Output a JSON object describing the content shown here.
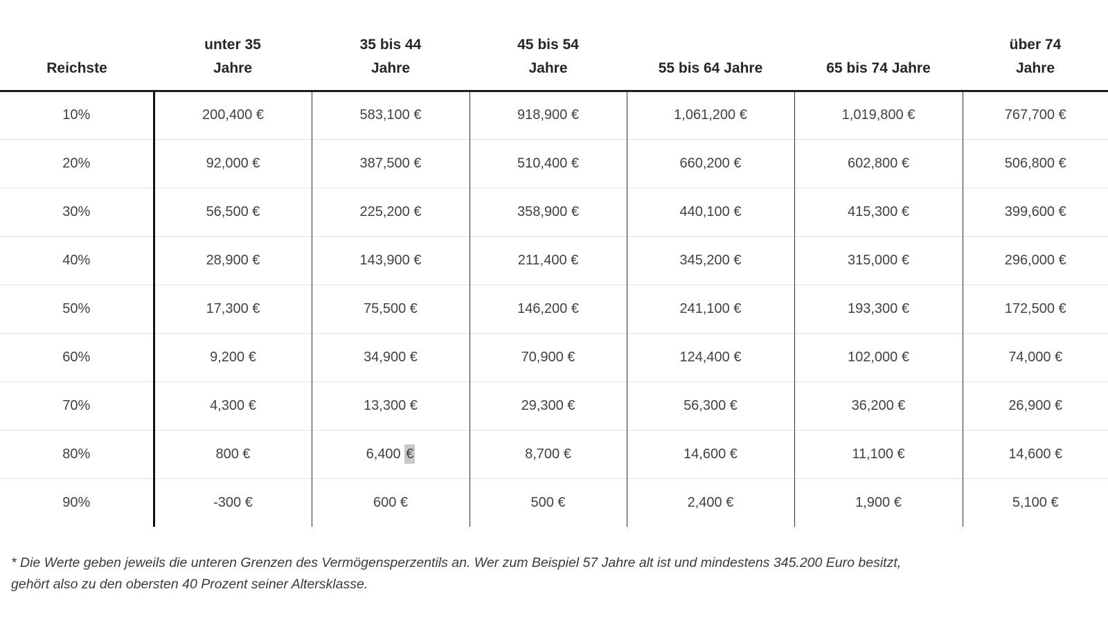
{
  "chart_data": {
    "type": "table",
    "title": "",
    "columns": [
      "Reichste",
      "unter 35 Jahre",
      "35 bis 44 Jahre",
      "45 bis 54 Jahre",
      "55 bis 64 Jahre",
      "65 bis 74 Jahre",
      "über 74 Jahre"
    ],
    "rows": [
      {
        "percent": "10%",
        "values": [
          "200,400 €",
          "583,100 €",
          "918,900 €",
          "1,061,200 €",
          "1,019,800 €",
          "767,700 €"
        ]
      },
      {
        "percent": "20%",
        "values": [
          "92,000 €",
          "387,500 €",
          "510,400 €",
          "660,200 €",
          "602,800 €",
          "506,800 €"
        ]
      },
      {
        "percent": "30%",
        "values": [
          "56,500 €",
          "225,200 €",
          "358,900 €",
          "440,100 €",
          "415,300 €",
          "399,600 €"
        ]
      },
      {
        "percent": "40%",
        "values": [
          "28,900 €",
          "143,900 €",
          "211,400 €",
          "345,200 €",
          "315,000 €",
          "296,000 €"
        ]
      },
      {
        "percent": "50%",
        "values": [
          "17,300 €",
          "75,500 €",
          "146,200 €",
          "241,100 €",
          "193,300 €",
          "172,500 €"
        ]
      },
      {
        "percent": "60%",
        "values": [
          "9,200 €",
          "34,900 €",
          "70,900 €",
          "124,400 €",
          "102,000 €",
          "74,000 €"
        ]
      },
      {
        "percent": "70%",
        "values": [
          "4,300 €",
          "13,300 €",
          "29,300 €",
          "56,300 €",
          "36,200 €",
          "26,900 €"
        ]
      },
      {
        "percent": "80%",
        "values": [
          "800 €",
          "6,400 €",
          "8,700 €",
          "14,600 €",
          "11,100 €",
          "14,600 €"
        ]
      },
      {
        "percent": "90%",
        "values": [
          "-300 €",
          "600 €",
          "500 €",
          "2,400 €",
          "1,900 €",
          "5,100 €"
        ]
      }
    ],
    "footnote": "* Die Werte geben jeweils die unteren Grenzen des Vermögensperzentils an. Wer zum Beispiel 57 Jahre alt ist und mindestens 345.200 Euro besitzt, gehört also zu den obersten 40 Prozent seiner Altersklasse."
  },
  "table_display": {
    "headers": [
      "Reichste",
      "unter 35\nJahre",
      "35 bis 44\nJahre",
      "45 bis 54\nJahre",
      "55 bis 64 Jahre",
      "65 bis 74 Jahre",
      "über 74\nJahre"
    ]
  },
  "highlight": {
    "row": 7,
    "col": 1,
    "prefix": "6,400 ",
    "highlighted": "€",
    "color": "#c9c9c9"
  },
  "footnote": {
    "text": "* Die Werte geben jeweils die unteren Grenzen des Vermögensperzentils an. Wer zum Beispiel 57 Jahre alt ist und mindestens 345.200 Euro besitzt,\ngehört also zu den obersten 40 Prozent seiner Altersklasse."
  },
  "colors": {
    "header_text": "#262626",
    "cell_text": "#414141",
    "thick_line": "#1b1b1b",
    "thin_line": "#2f2f2f",
    "row_separator": "#e4e4e4",
    "selection_highlight": "#c9c9c9"
  }
}
